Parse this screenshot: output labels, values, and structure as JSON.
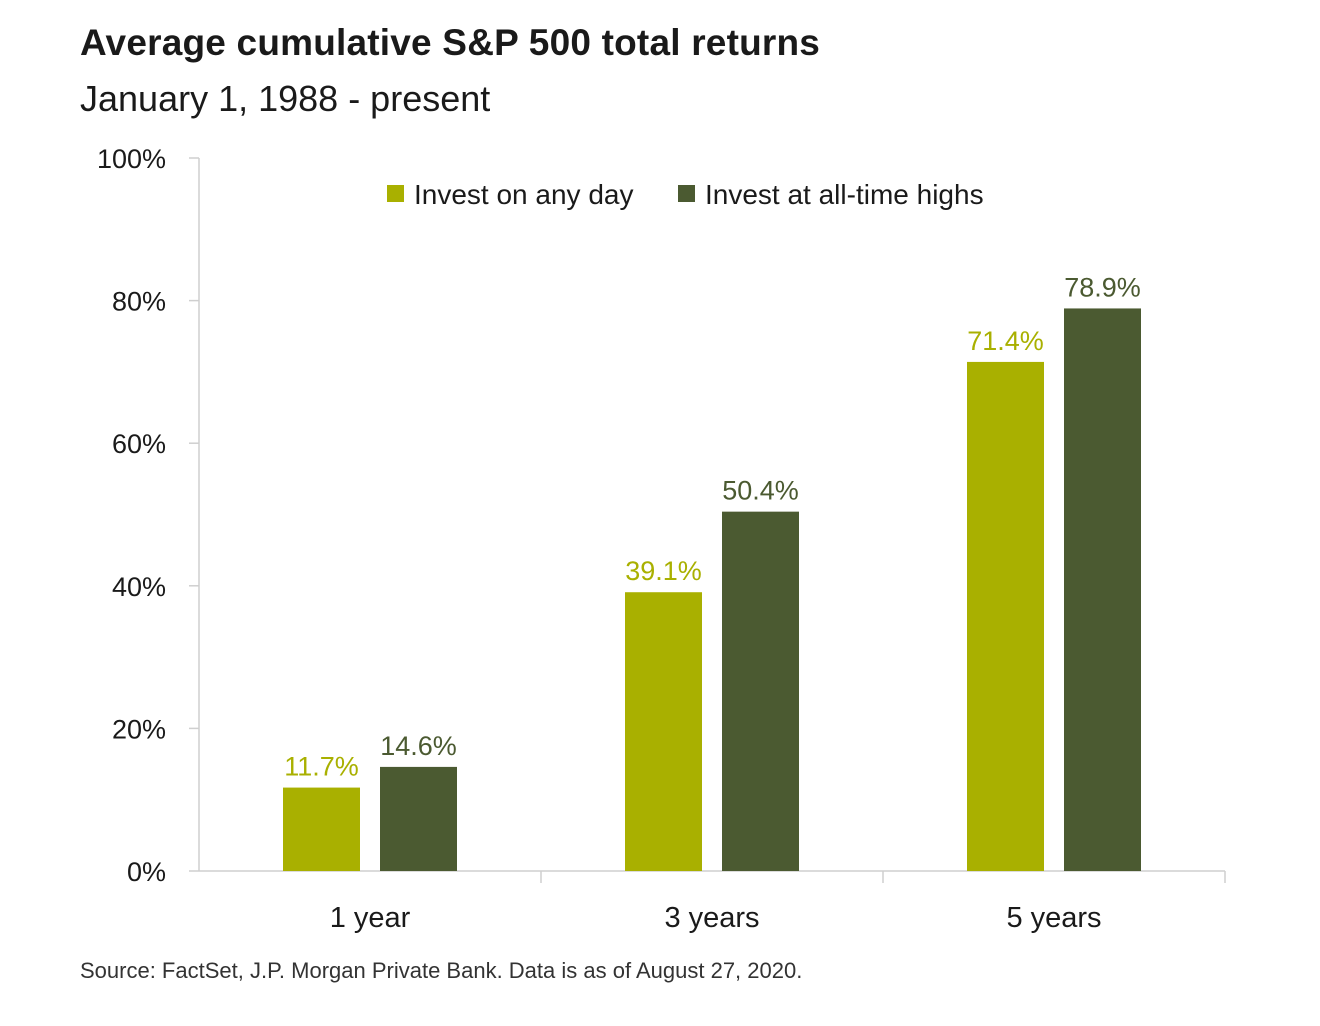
{
  "chart_data": {
    "type": "bar",
    "title": "Average cumulative S&P 500 total returns",
    "subtitle": "January 1, 1988 - present",
    "categories": [
      "1 year",
      "3 years",
      "5 years"
    ],
    "series": [
      {
        "name": "Invest on any day",
        "values": [
          11.7,
          39.1,
          71.4
        ],
        "labels": [
          "11.7%",
          "39.1%",
          "71.4%"
        ],
        "color": "#a9b000"
      },
      {
        "name": "Invest at all-time highs",
        "values": [
          14.6,
          50.4,
          78.9
        ],
        "labels": [
          "14.6%",
          "50.4%",
          "78.9%"
        ],
        "color": "#4b5a31"
      }
    ],
    "ylim": [
      0,
      100
    ],
    "yticks": [
      "0%",
      "20%",
      "40%",
      "60%",
      "80%",
      "100%"
    ],
    "ytick_values": [
      0,
      20,
      40,
      60,
      80,
      100
    ],
    "grid": false,
    "legend_position": "top-center",
    "label_colors": [
      "#a9b000",
      "#4b5a31"
    ]
  },
  "source": "Source: FactSet, J.P. Morgan Private Bank. Data is as of August 27, 2020."
}
